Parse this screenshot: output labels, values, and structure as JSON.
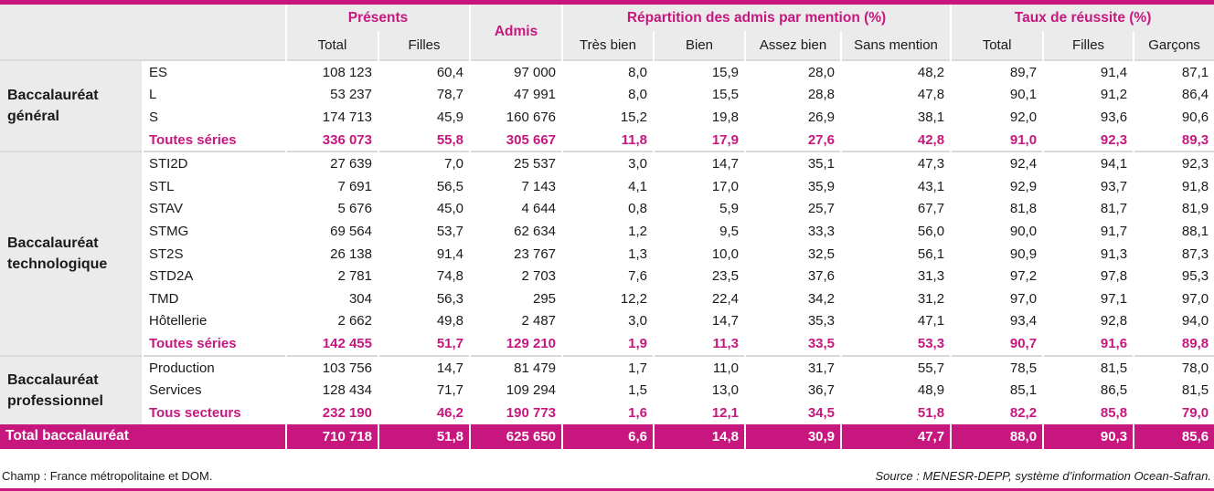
{
  "header": {
    "groups": {
      "presents": "Présents",
      "admis": "Admis",
      "repartition": "Répartition des admis par mention (%)",
      "taux": "Taux de réussite (%)"
    },
    "sub": {
      "total": "Total",
      "filles": "Filles",
      "tres_bien": "Très bien",
      "bien": "Bien",
      "assez_bien": "Assez bien",
      "sans_mention": "Sans mention",
      "taux_total": "Total",
      "taux_filles": "Filles",
      "taux_garcons": "Garçons"
    }
  },
  "sections": [
    {
      "label": "Baccalauréat général",
      "rows": [
        {
          "serie": "ES",
          "total": "108 123",
          "filles": "60,4",
          "admis": "97 000",
          "tb": "8,0",
          "b": "15,9",
          "ab": "28,0",
          "sm": "48,2",
          "tt": "89,7",
          "tf": "91,4",
          "tg": "87,1"
        },
        {
          "serie": "L",
          "total": "53 237",
          "filles": "78,7",
          "admis": "47 991",
          "tb": "8,0",
          "b": "15,5",
          "ab": "28,8",
          "sm": "47,8",
          "tt": "90,1",
          "tf": "91,2",
          "tg": "86,4"
        },
        {
          "serie": "S",
          "total": "174 713",
          "filles": "45,9",
          "admis": "160 676",
          "tb": "15,2",
          "b": "19,8",
          "ab": "26,9",
          "sm": "38,1",
          "tt": "92,0",
          "tf": "93,6",
          "tg": "90,6"
        },
        {
          "serie": "Toutes séries",
          "total": "336 073",
          "filles": "55,8",
          "admis": "305 667",
          "tb": "11,8",
          "b": "17,9",
          "ab": "27,6",
          "sm": "42,8",
          "tt": "91,0",
          "tf": "92,3",
          "tg": "89,3"
        }
      ]
    },
    {
      "label": "Baccalauréat technologique",
      "rows": [
        {
          "serie": "STI2D",
          "total": "27 639",
          "filles": "7,0",
          "admis": "25 537",
          "tb": "3,0",
          "b": "14,7",
          "ab": "35,1",
          "sm": "47,3",
          "tt": "92,4",
          "tf": "94,1",
          "tg": "92,3"
        },
        {
          "serie": "STL",
          "total": "7 691",
          "filles": "56,5",
          "admis": "7 143",
          "tb": "4,1",
          "b": "17,0",
          "ab": "35,9",
          "sm": "43,1",
          "tt": "92,9",
          "tf": "93,7",
          "tg": "91,8"
        },
        {
          "serie": "STAV",
          "total": "5 676",
          "filles": "45,0",
          "admis": "4 644",
          "tb": "0,8",
          "b": "5,9",
          "ab": "25,7",
          "sm": "67,7",
          "tt": "81,8",
          "tf": "81,7",
          "tg": "81,9"
        },
        {
          "serie": "STMG",
          "total": "69 564",
          "filles": "53,7",
          "admis": "62 634",
          "tb": "1,2",
          "b": "9,5",
          "ab": "33,3",
          "sm": "56,0",
          "tt": "90,0",
          "tf": "91,7",
          "tg": "88,1"
        },
        {
          "serie": "ST2S",
          "total": "26 138",
          "filles": "91,4",
          "admis": "23 767",
          "tb": "1,3",
          "b": "10,0",
          "ab": "32,5",
          "sm": "56,1",
          "tt": "90,9",
          "tf": "91,3",
          "tg": "87,3"
        },
        {
          "serie": "STD2A",
          "total": "2 781",
          "filles": "74,8",
          "admis": "2 703",
          "tb": "7,6",
          "b": "23,5",
          "ab": "37,6",
          "sm": "31,3",
          "tt": "97,2",
          "tf": "97,8",
          "tg": "95,3"
        },
        {
          "serie": "TMD",
          "total": "304",
          "filles": "56,3",
          "admis": "295",
          "tb": "12,2",
          "b": "22,4",
          "ab": "34,2",
          "sm": "31,2",
          "tt": "97,0",
          "tf": "97,1",
          "tg": "97,0"
        },
        {
          "serie": "Hôtellerie",
          "total": "2 662",
          "filles": "49,8",
          "admis": "2 487",
          "tb": "3,0",
          "b": "14,7",
          "ab": "35,3",
          "sm": "47,1",
          "tt": "93,4",
          "tf": "92,8",
          "tg": "94,0"
        },
        {
          "serie": "Toutes séries",
          "total": "142 455",
          "filles": "51,7",
          "admis": "129 210",
          "tb": "1,9",
          "b": "11,3",
          "ab": "33,5",
          "sm": "53,3",
          "tt": "90,7",
          "tf": "91,6",
          "tg": "89,8"
        }
      ]
    },
    {
      "label": "Baccalauréat professionnel",
      "rows": [
        {
          "serie": "Production",
          "total": "103 756",
          "filles": "14,7",
          "admis": "81 479",
          "tb": "1,7",
          "b": "11,0",
          "ab": "31,7",
          "sm": "55,7",
          "tt": "78,5",
          "tf": "81,5",
          "tg": "78,0"
        },
        {
          "serie": "Services",
          "total": "128 434",
          "filles": "71,7",
          "admis": "109 294",
          "tb": "1,5",
          "b": "13,0",
          "ab": "36,7",
          "sm": "48,9",
          "tt": "85,1",
          "tf": "86,5",
          "tg": "81,5"
        },
        {
          "serie": "Tous secteurs",
          "total": "232 190",
          "filles": "46,2",
          "admis": "190 773",
          "tb": "1,6",
          "b": "12,1",
          "ab": "34,5",
          "sm": "51,8",
          "tt": "82,2",
          "tf": "85,8",
          "tg": "79,0"
        }
      ]
    }
  ],
  "grand_total": {
    "label": "Total baccalauréat",
    "total": "710 718",
    "filles": "51,8",
    "admis": "625 650",
    "tb": "6,6",
    "b": "14,8",
    "ab": "30,9",
    "sm": "47,7",
    "tt": "88,0",
    "tf": "90,3",
    "tg": "85,6"
  },
  "footer": {
    "champ": "Champ : France métropolitaine et DOM.",
    "source": "Source : MENESR-DEPP, système d’information Ocean-Safran."
  },
  "colors": {
    "accent": "#c7177f",
    "header_bg": "#ebebeb"
  }
}
